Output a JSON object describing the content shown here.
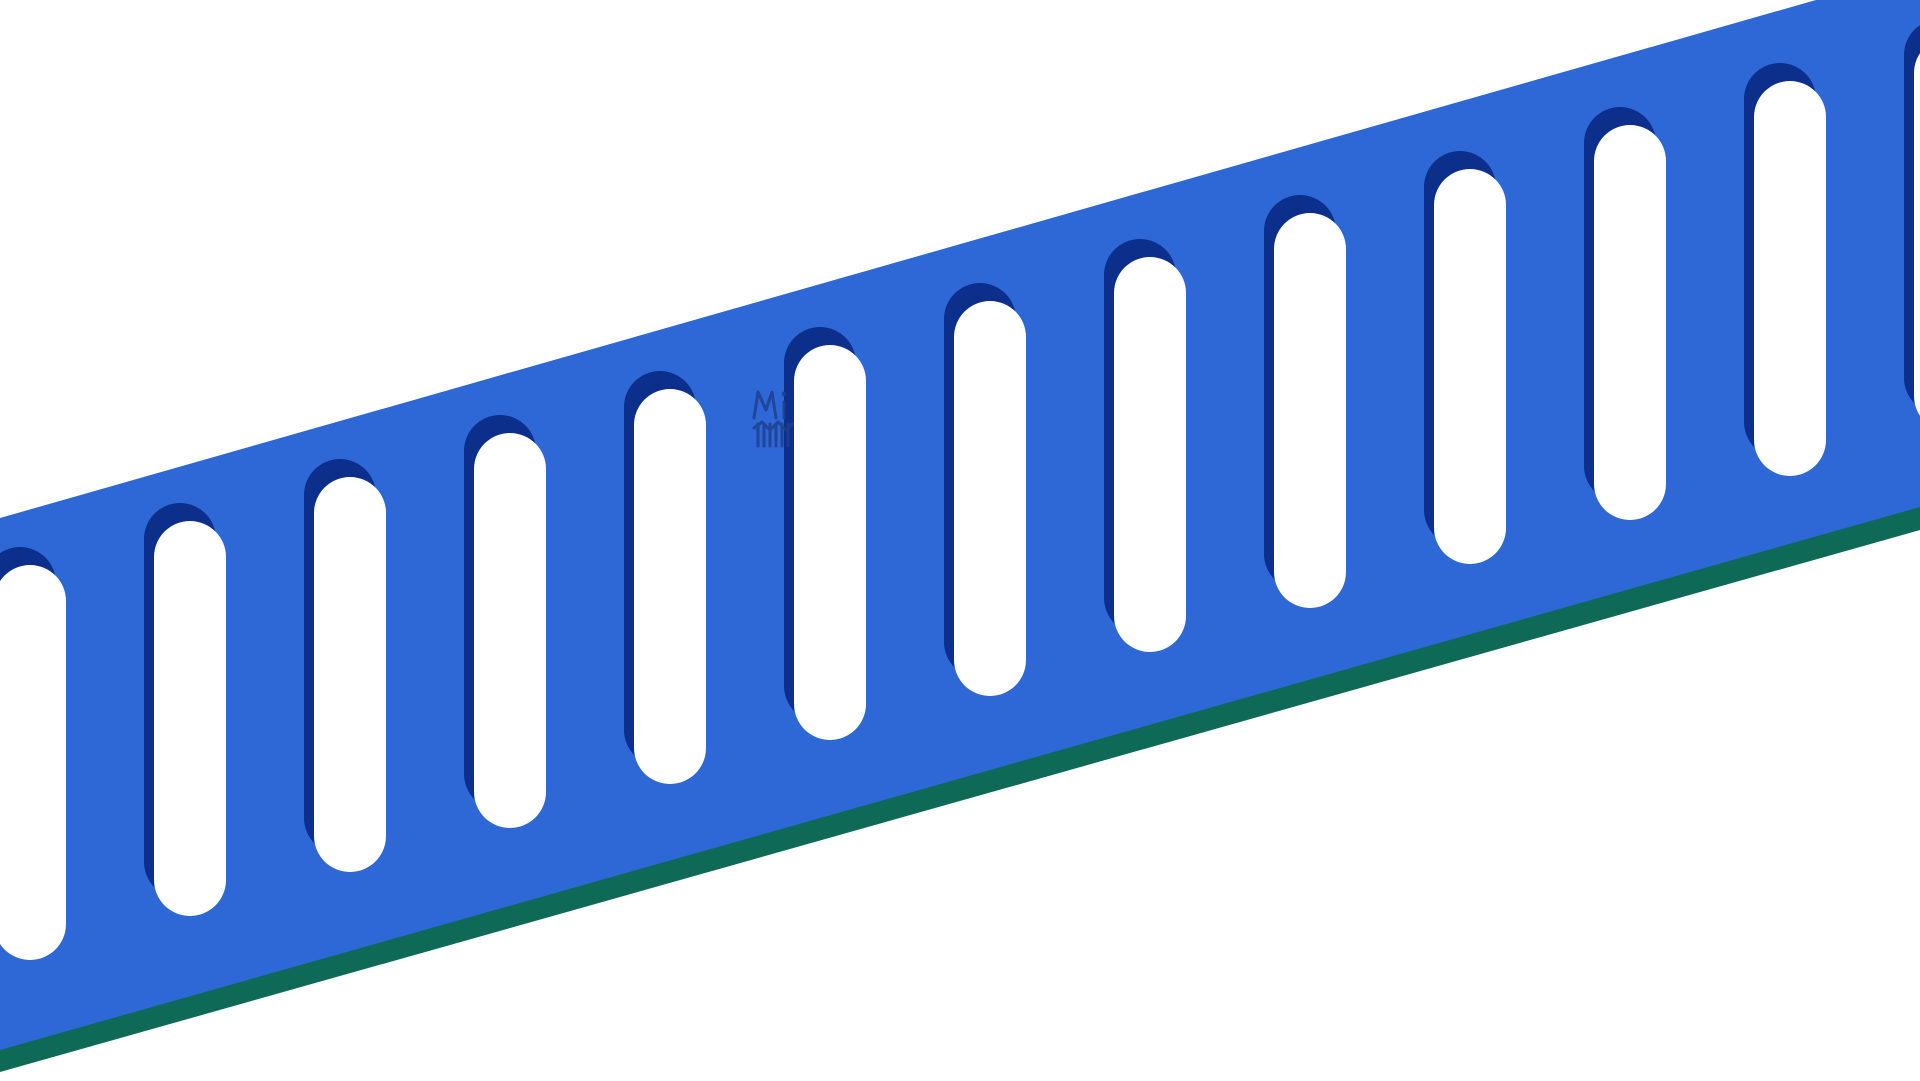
{
  "scene": {
    "subject": "perforated-strip",
    "slot_count": 13,
    "colors": {
      "background": "#ffffff",
      "strip": "#2d68d6",
      "strip_edge": "#0e6a56",
      "slot_shadow": "#0b2f8a",
      "slot_hole": "#ffffff",
      "logo": "#1f3f8f"
    },
    "logo": {
      "name": "mi-logo-mark",
      "icon": "logo-icon"
    }
  }
}
